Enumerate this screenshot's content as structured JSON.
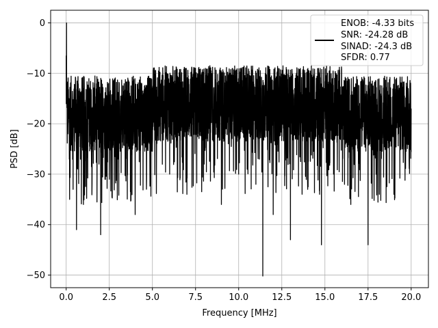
{
  "chart_data": {
    "type": "line",
    "title": "",
    "xlabel": "Frequency [MHz]",
    "ylabel": "PSD [dB]",
    "xlim": [
      -0.9,
      21.0
    ],
    "ylim": [
      -52.5,
      2.5
    ],
    "xticks": [
      0.0,
      2.5,
      5.0,
      7.5,
      10.0,
      12.5,
      15.0,
      17.5,
      20.0
    ],
    "xtick_labels": [
      "0.0",
      "2.5",
      "5.0",
      "7.5",
      "10.0",
      "12.5",
      "15.0",
      "17.5",
      "20.0"
    ],
    "yticks": [
      0,
      -10,
      -20,
      -30,
      -40,
      -50
    ],
    "ytick_labels": [
      "0",
      "−10",
      "−20",
      "−30",
      "−40",
      "−50"
    ],
    "grid": true,
    "legend_position": "upper right",
    "line_color": "#000000",
    "series": [
      {
        "name": "",
        "x": [
          0.0,
          0.02,
          0.05,
          0.1,
          0.2,
          0.3,
          0.4,
          0.5,
          0.6,
          0.8,
          1.0,
          1.2,
          1.5,
          1.9,
          2.0,
          2.2,
          2.5,
          2.6,
          3.0,
          3.5,
          4.0,
          4.5,
          5.0,
          5.5,
          6.0,
          6.5,
          7.0,
          7.5,
          8.0,
          8.5,
          9.0,
          9.5,
          10.0,
          10.5,
          11.0,
          11.4,
          11.5,
          12.0,
          12.5,
          13.0,
          13.5,
          14.0,
          14.5,
          14.8,
          15.0,
          15.5,
          16.0,
          16.5,
          17.0,
          17.5,
          17.6,
          18.0,
          18.5,
          19.0,
          19.5,
          20.0
        ],
        "y": [
          -6.5,
          0.0,
          -12.0,
          -22.0,
          -35.0,
          -24.0,
          -33.0,
          -20.0,
          -41.0,
          -18.0,
          -36.0,
          -22.0,
          -32.0,
          -28.0,
          -42.0,
          -15.0,
          -31.0,
          -20.0,
          -27.0,
          -18.0,
          -38.0,
          -16.0,
          -24.0,
          -12.0,
          -30.0,
          -14.0,
          -34.0,
          -9.0,
          -28.0,
          -13.0,
          -36.0,
          -10.0,
          -30.0,
          -16.0,
          -32.0,
          -50.2,
          -22.0,
          -38.0,
          -12.0,
          -43.0,
          -15.0,
          -33.0,
          -11.0,
          -44.0,
          -19.0,
          -30.0,
          -13.0,
          -36.0,
          -20.0,
          -44.0,
          -24.0,
          -33.0,
          -15.0,
          -34.0,
          -20.0,
          -17.0
        ]
      }
    ],
    "legend_lines": [
      "ENOB: -4.33 bits",
      "SNR: -24.28 dB",
      "SINAD: -24.3 dB",
      "SFDR: 0.77"
    ]
  }
}
